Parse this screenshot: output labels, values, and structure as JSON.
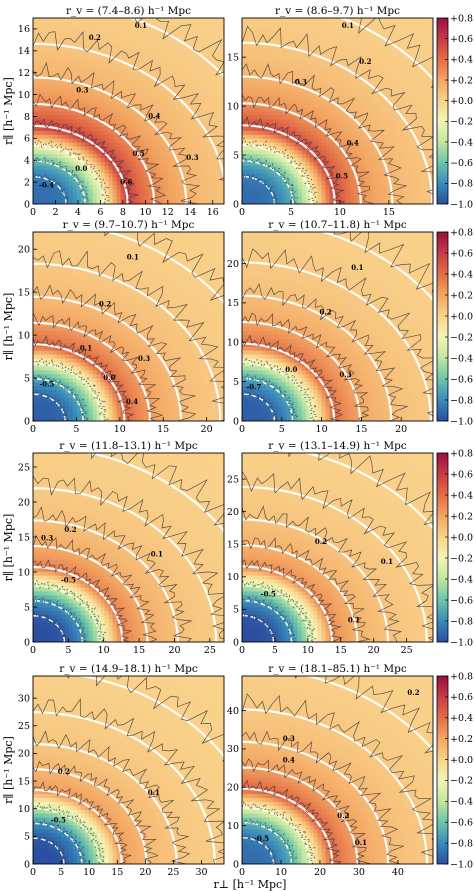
{
  "figure": {
    "x_axis_label": "r⊥ [h⁻¹ Mpc]",
    "y_axis_label": "r∥ [h⁻¹ Mpc]"
  },
  "colorbar": {
    "ticks": [
      "+0.8",
      "+0.6",
      "+0.4",
      "+0.2",
      "+0.0",
      "−0.2",
      "−0.4",
      "−0.6",
      "−0.8",
      "−1.0"
    ],
    "range": [
      -1.0,
      0.8
    ],
    "colormap": [
      "#2c4ea0",
      "#3a8bbb",
      "#6dc4a9",
      "#c2e6a0",
      "#f2f4b6",
      "#f9d38c",
      "#f3a562",
      "#e26d47",
      "#c63b45",
      "#9a0f3f"
    ]
  },
  "chart_data": [
    {
      "type": "heatmap",
      "title": "r_v = (7.4–8.6) h⁻¹ Mpc",
      "xlim": [
        0,
        17
      ],
      "ylim": [
        0,
        17
      ],
      "xticks": [
        0,
        2,
        4,
        6,
        8,
        10,
        12,
        14,
        16
      ],
      "yticks": [
        0,
        2,
        4,
        6,
        8,
        10,
        12,
        14,
        16
      ],
      "ridge_radius": 8,
      "peak_value": 0.6,
      "void_value": -0.9,
      "contour_labels": [
        {
          "text": "0.6",
          "x": 8.3,
          "y": 1.8
        },
        {
          "text": "0.5",
          "x": 9.4,
          "y": 4.4
        },
        {
          "text": "0.4",
          "x": 10.8,
          "y": 7.8
        },
        {
          "text": "0.3",
          "x": 4.4,
          "y": 10.2
        },
        {
          "text": "0.2",
          "x": 5.5,
          "y": 15.0
        },
        {
          "text": "0.1",
          "x": 9.6,
          "y": 16.1
        },
        {
          "text": "0.0",
          "x": 4.3,
          "y": 3.0
        },
        {
          "text": "-0.4",
          "x": 1.2,
          "y": 1.5
        },
        {
          "text": "0.3",
          "x": 14.2,
          "y": 4.0
        }
      ]
    },
    {
      "type": "heatmap",
      "title": "r_v = (8.6–9.7) h⁻¹ Mpc",
      "xlim": [
        0,
        19.5
      ],
      "ylim": [
        0,
        19
      ],
      "xticks": [
        0,
        5,
        10,
        15
      ],
      "yticks": [
        0,
        5,
        10,
        15
      ],
      "ridge_radius": 9,
      "peak_value": 0.55,
      "void_value": -0.9,
      "contour_labels": [
        {
          "text": "0.5",
          "x": 10.2,
          "y": 2.6
        },
        {
          "text": "0.4",
          "x": 11.3,
          "y": 6.0
        },
        {
          "text": "0.3",
          "x": 6.0,
          "y": 12.2
        },
        {
          "text": "0.2",
          "x": 12.6,
          "y": 14.3
        },
        {
          "text": "0.1",
          "x": 10.8,
          "y": 18.0
        }
      ]
    },
    {
      "type": "heatmap",
      "title": "r_v = (9.7–10.7) h⁻¹ Mpc",
      "xlim": [
        0,
        22
      ],
      "ylim": [
        0,
        22
      ],
      "xticks": [
        0,
        5,
        10,
        15,
        20
      ],
      "yticks": [
        0,
        5,
        10,
        15,
        20
      ],
      "ridge_radius": 10,
      "peak_value": 0.45,
      "void_value": -0.95,
      "contour_labels": [
        {
          "text": "0.4",
          "x": 11.4,
          "y": 2.0
        },
        {
          "text": "0.3",
          "x": 12.8,
          "y": 7.0
        },
        {
          "text": "0.2",
          "x": 8.3,
          "y": 13.3
        },
        {
          "text": "0.1",
          "x": 11.5,
          "y": 18.8
        },
        {
          "text": "0.0",
          "x": 8.8,
          "y": 4.8
        },
        {
          "text": "0.1",
          "x": 6.1,
          "y": 8.2
        },
        {
          "text": "-0.5",
          "x": 1.6,
          "y": 4.0
        }
      ]
    },
    {
      "type": "heatmap",
      "title": "r_v = (10.7–11.8) h⁻¹ Mpc",
      "xlim": [
        0,
        24
      ],
      "ylim": [
        0,
        24
      ],
      "xticks": [
        0,
        5,
        10,
        15,
        20
      ],
      "yticks": [
        0,
        5,
        10,
        15,
        20
      ],
      "ridge_radius": 11,
      "peak_value": 0.4,
      "void_value": -0.95,
      "contour_labels": [
        {
          "text": "0.3",
          "x": 13.0,
          "y": 5.6
        },
        {
          "text": "0.2",
          "x": 10.5,
          "y": 13.5
        },
        {
          "text": "0.1",
          "x": 14.5,
          "y": 19.2
        },
        {
          "text": "0.0",
          "x": 6.2,
          "y": 6.2
        },
        {
          "text": "-0.7",
          "x": 1.5,
          "y": 4.0
        }
      ]
    },
    {
      "type": "heatmap",
      "title": "r_v = (11.8–13.1) h⁻¹ Mpc",
      "xlim": [
        0,
        27
      ],
      "ylim": [
        0,
        27
      ],
      "xticks": [
        0,
        5,
        10,
        15,
        20,
        25
      ],
      "yticks": [
        0,
        5,
        10,
        15,
        20,
        25
      ],
      "ridge_radius": 12,
      "peak_value": 0.35,
      "void_value": -1.0,
      "contour_labels": [
        {
          "text": "0.3",
          "x": 2.0,
          "y": 14.5
        },
        {
          "text": "0.2",
          "x": 5.3,
          "y": 15.7
        },
        {
          "text": "0.1",
          "x": 17.5,
          "y": 12.2
        },
        {
          "text": "-0.5",
          "x": 5.0,
          "y": 8.5
        }
      ]
    },
    {
      "type": "heatmap",
      "title": "r_v = (13.1–14.9) h⁻¹ Mpc",
      "xlim": [
        0,
        29
      ],
      "ylim": [
        0,
        29
      ],
      "xticks": [
        0,
        5,
        10,
        15,
        20,
        25
      ],
      "yticks": [
        0,
        5,
        10,
        15,
        20,
        25
      ],
      "ridge_radius": 13,
      "peak_value": 0.3,
      "void_value": -1.0,
      "contour_labels": [
        {
          "text": "0.1",
          "x": 22.0,
          "y": 12.0
        },
        {
          "text": "0.1",
          "x": 17.0,
          "y": 3.0
        },
        {
          "text": "0.2",
          "x": 12.0,
          "y": 15.0
        },
        {
          "text": "-0.5",
          "x": 4.0,
          "y": 7.0
        }
      ]
    },
    {
      "type": "heatmap",
      "title": "r_v = (14.9–18.1) h⁻¹ Mpc",
      "xlim": [
        0,
        34
      ],
      "ylim": [
        0,
        34
      ],
      "xticks": [
        0,
        5,
        10,
        15,
        20,
        25,
        30
      ],
      "yticks": [
        0,
        5,
        10,
        15,
        20,
        25,
        30
      ],
      "ridge_radius": 15,
      "peak_value": 0.25,
      "void_value": -1.0,
      "contour_labels": [
        {
          "text": "0.2",
          "x": 5.5,
          "y": 16.3
        },
        {
          "text": "0.1",
          "x": 21.5,
          "y": 12.5
        },
        {
          "text": "-0.5",
          "x": 4.5,
          "y": 7.5
        }
      ]
    },
    {
      "type": "heatmap",
      "title": "r_v = (18.1–85.1) h⁻¹ Mpc",
      "xlim": [
        0,
        49
      ],
      "ylim": [
        0,
        49
      ],
      "xticks": [
        0,
        10,
        20,
        30,
        40
      ],
      "yticks": [
        0,
        10,
        20,
        30,
        40
      ],
      "ridge_radius": 22,
      "peak_value": 0.45,
      "void_value": -0.9,
      "contour_labels": [
        {
          "text": "0.4",
          "x": 12.0,
          "y": 26.5
        },
        {
          "text": "0.3",
          "x": 12.0,
          "y": 32.0
        },
        {
          "text": "0.2",
          "x": 44.0,
          "y": 44.0
        },
        {
          "text": "0.2",
          "x": 26.0,
          "y": 12.0
        },
        {
          "text": "0.1",
          "x": 30.5,
          "y": 5.0
        },
        {
          "text": "-0.5",
          "x": 5.0,
          "y": 6.0
        }
      ]
    }
  ]
}
